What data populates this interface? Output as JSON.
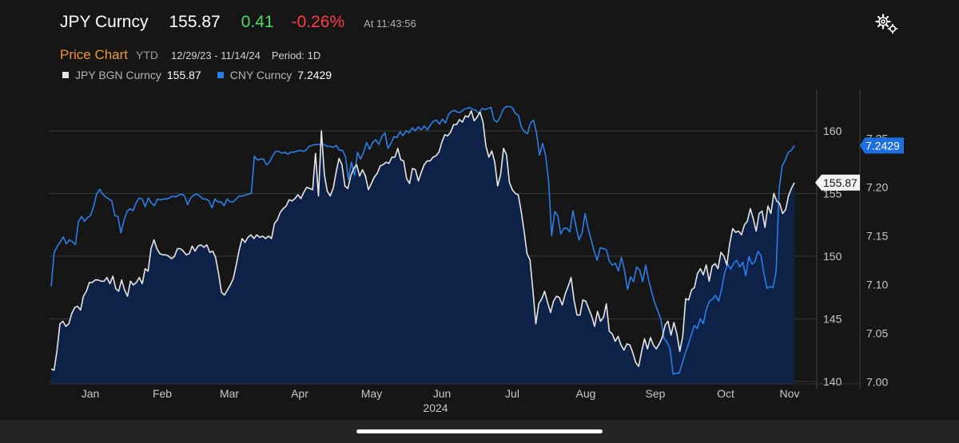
{
  "header": {
    "ticker": "JPY Curncy",
    "last_price": "155.87",
    "net_change": "0.41",
    "pct_change": "-0.26%",
    "timestamp": "At 11:43:56",
    "settings_icon": "gear-icon"
  },
  "subheader": {
    "chart_type": "Price Chart",
    "range": "YTD",
    "date_range": "12/29/23 - 11/14/24",
    "period": "Period: 1D"
  },
  "legend": [
    {
      "label": "JPY BGN Curncy",
      "value": "155.87",
      "color": "#e6e6e6"
    },
    {
      "label": "CNY Curncy",
      "value": "7.2429",
      "color": "#2b7de9"
    }
  ],
  "colors": {
    "background": "#161616",
    "area_fill": "#0d2246",
    "jpy_line": "#e6e6e6",
    "cny_line": "#2b7de9",
    "gridline": "#3a3a3a",
    "positive": "#4cd964",
    "negative": "#ff3b4a",
    "accent": "#f0943a"
  },
  "chart_data": {
    "type": "line",
    "x_labels": [
      "Jan",
      "Feb",
      "Mar",
      "Apr",
      "May",
      "Jun",
      "Jul",
      "Aug",
      "Sep",
      "Oct",
      "Nov"
    ],
    "x_sublabel": "2024",
    "left_axis": {
      "ticks": [
        "160",
        "155",
        "150",
        "145",
        "140"
      ],
      "ylim": [
        139.8,
        162.8
      ]
    },
    "right_axis": {
      "ticks": [
        "7.25",
        "7.20",
        "7.15",
        "7.10",
        "7.05",
        "7.00"
      ],
      "ylim": [
        6.998,
        7.294
      ]
    },
    "last_value_labels": {
      "jpy": "155.87",
      "cny": "7.2429"
    },
    "series": [
      {
        "name": "JPY BGN Curncy",
        "axis": "left",
        "values": [
          141.0,
          140.9,
          142.5,
          144.6,
          144.8,
          144.4,
          144.6,
          145.4,
          145.9,
          146.0,
          145.7,
          146.8,
          147.2,
          147.9,
          147.9,
          148.1,
          148.1,
          148.0,
          148.0,
          148.3,
          147.8,
          148.4,
          147.4,
          147.2,
          148.1,
          147.3,
          146.8,
          148.0,
          147.7,
          147.9,
          148.3,
          147.8,
          149.0,
          148.8,
          150.6,
          151.3,
          150.6,
          150.2,
          150.1,
          150.1,
          150.0,
          149.8,
          150.0,
          150.6,
          150.6,
          150.4,
          150.1,
          150.2,
          150.8,
          150.4,
          150.8,
          150.9,
          150.7,
          150.9,
          150.3,
          150.4,
          149.9,
          148.6,
          147.1,
          146.9,
          147.3,
          147.7,
          148.2,
          149.3,
          150.5,
          151.4,
          151.1,
          151.5,
          151.7,
          151.4,
          151.7,
          151.5,
          151.6,
          151.4,
          151.6,
          151.4,
          152.6,
          152.9,
          153.5,
          153.8,
          154.0,
          154.5,
          154.4,
          154.6,
          154.9,
          154.6,
          155.1,
          155.5,
          155.4,
          155.3,
          158.2,
          154.8,
          160.0,
          156.5,
          155.2,
          154.8,
          155.4,
          156.7,
          157.8,
          157.3,
          155.6,
          155.4,
          156.4,
          157.0,
          157.3,
          156.4,
          156.9,
          156.4,
          155.3,
          155.8,
          156.3,
          156.6,
          157.2,
          157.3,
          157.5,
          157.4,
          157.9,
          157.9,
          158.6,
          157.7,
          157.6,
          156.2,
          155.8,
          157.0,
          156.9,
          156.0,
          156.7,
          157.3,
          157.6,
          157.6,
          157.9,
          158.0,
          158.3,
          159.1,
          159.7,
          159.6,
          159.9,
          160.5,
          160.5,
          160.9,
          160.7,
          161.2,
          161.1,
          161.6,
          160.8,
          161.1,
          161.5,
          160.7,
          158.8,
          157.9,
          158.4,
          157.5,
          155.6,
          156.5,
          158.6,
          158.1,
          155.9,
          155.3,
          155.0,
          154.9,
          153.6,
          152.0,
          150.2,
          149.7,
          147.3,
          144.6,
          146.2,
          146.6,
          147.2,
          146.3,
          145.5,
          146.4,
          146.8,
          146.7,
          146.1,
          147.0,
          147.6,
          148.3,
          146.5,
          145.3,
          145.3,
          146.5,
          146.4,
          145.8,
          145.2,
          144.4,
          145.6,
          144.8,
          145.1,
          146.2,
          144.0,
          143.8,
          143.2,
          143.6,
          142.9,
          142.5,
          143.0,
          142.9,
          142.3,
          141.5,
          141.2,
          142.4,
          143.4,
          142.6,
          143.5,
          142.9,
          142.6,
          143.0,
          143.5,
          144.5,
          144.8,
          143.7,
          144.7,
          143.8,
          142.4,
          143.6,
          146.6,
          146.5,
          147.3,
          147.5,
          148.6,
          149.0,
          148.5,
          149.3,
          148.0,
          149.2,
          149.4,
          149.0,
          150.3,
          150.0,
          149.3,
          151.0,
          152.2,
          151.9,
          152.0,
          151.7,
          152.5,
          152.8,
          153.8,
          153.0,
          152.0,
          153.4,
          153.6,
          152.3,
          154.0,
          153.4,
          155.0,
          154.4,
          154.2,
          153.4,
          153.7,
          154.8,
          155.4,
          155.87
        ]
      },
      {
        "name": "CNY Curncy",
        "axis": "right",
        "values": [
          7.098,
          7.133,
          7.139,
          7.144,
          7.149,
          7.142,
          7.146,
          7.144,
          7.141,
          7.165,
          7.17,
          7.165,
          7.169,
          7.171,
          7.18,
          7.193,
          7.198,
          7.193,
          7.19,
          7.188,
          7.186,
          7.171,
          7.17,
          7.153,
          7.166,
          7.175,
          7.178,
          7.176,
          7.184,
          7.189,
          7.188,
          7.18,
          7.189,
          7.184,
          7.181,
          7.188,
          7.187,
          7.188,
          7.188,
          7.189,
          7.191,
          7.19,
          7.192,
          7.193,
          7.191,
          7.182,
          7.189,
          7.192,
          7.193,
          7.191,
          7.188,
          7.188,
          7.186,
          7.179,
          7.188,
          7.185,
          7.185,
          7.181,
          7.188,
          7.185,
          7.185,
          7.188,
          7.191,
          7.191,
          7.192,
          7.193,
          7.194,
          7.232,
          7.228,
          7.229,
          7.229,
          7.223,
          7.226,
          7.232,
          7.237,
          7.237,
          7.235,
          7.236,
          7.234,
          7.236,
          7.236,
          7.237,
          7.238,
          7.237,
          7.238,
          7.242,
          7.243,
          7.244,
          7.244,
          7.244,
          7.244,
          7.242,
          7.242,
          7.241,
          7.243,
          7.238,
          7.238,
          7.232,
          7.208,
          7.226,
          7.212,
          7.236,
          7.229,
          7.236,
          7.246,
          7.239,
          7.246,
          7.249,
          7.244,
          7.252,
          7.256,
          7.24,
          7.245,
          7.252,
          7.251,
          7.257,
          7.253,
          7.258,
          7.256,
          7.261,
          7.258,
          7.262,
          7.259,
          7.263,
          7.259,
          7.264,
          7.268,
          7.269,
          7.265,
          7.27,
          7.266,
          7.275,
          7.278,
          7.279,
          7.277,
          7.277,
          7.28,
          7.281,
          7.282,
          7.28,
          7.279,
          7.276,
          7.281,
          7.28,
          7.281,
          7.282,
          7.269,
          7.267,
          7.272,
          7.28,
          7.283,
          7.283,
          7.282,
          7.276,
          7.274,
          7.262,
          7.257,
          7.255,
          7.266,
          7.269,
          7.256,
          7.233,
          7.245,
          7.233,
          7.206,
          7.15,
          7.175,
          7.171,
          7.152,
          7.158,
          7.158,
          7.154,
          7.176,
          7.16,
          7.146,
          7.153,
          7.173,
          7.158,
          7.146,
          7.134,
          7.125,
          7.138,
          7.137,
          7.136,
          7.124,
          7.12,
          7.122,
          7.114,
          7.128,
          7.115,
          7.095,
          7.108,
          7.103,
          7.118,
          7.115,
          7.103,
          7.12,
          7.104,
          7.092,
          7.081,
          7.073,
          7.064,
          7.045,
          7.041,
          7.034,
          7.008,
          7.009,
          7.009,
          7.019,
          7.029,
          7.038,
          7.048,
          7.058,
          7.055,
          7.065,
          7.06,
          7.075,
          7.083,
          7.085,
          7.089,
          7.083,
          7.095,
          7.112,
          7.121,
          7.116,
          7.122,
          7.125,
          7.118,
          7.123,
          7.109,
          7.129,
          7.121,
          7.124,
          7.134,
          7.13,
          7.111,
          7.096,
          7.098,
          7.097,
          7.114,
          7.199,
          7.222,
          7.228,
          7.236,
          7.238,
          7.2429
        ]
      }
    ]
  }
}
